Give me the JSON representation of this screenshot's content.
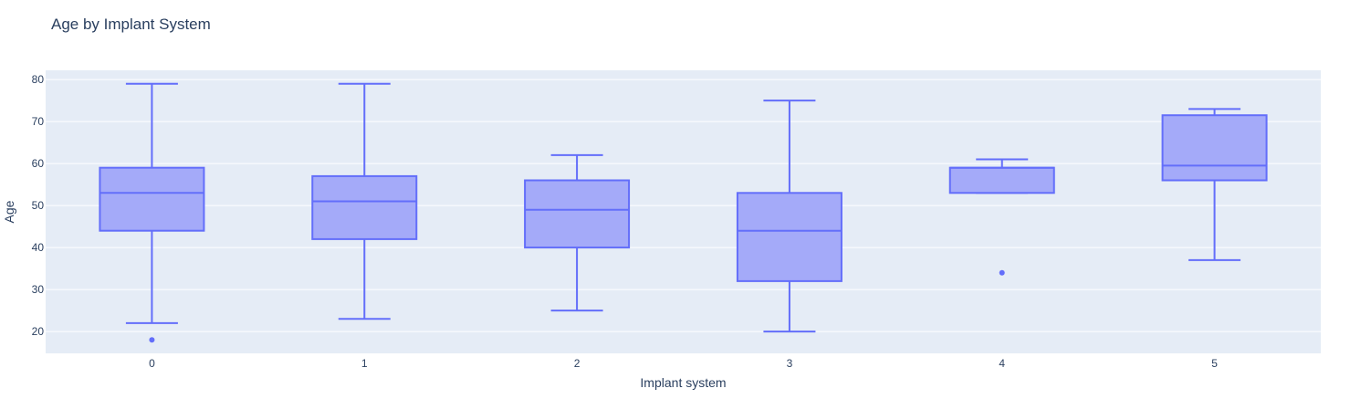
{
  "chart_data": {
    "type": "box",
    "title": "Age by Implant System",
    "xlabel": "Implant system",
    "ylabel": "Age",
    "categories": [
      "0",
      "1",
      "2",
      "3",
      "4",
      "5"
    ],
    "yticks": [
      20,
      30,
      40,
      50,
      60,
      70,
      80
    ],
    "ylim": [
      14.8,
      82.2
    ],
    "grid": true,
    "boxes": [
      {
        "category": "0",
        "lowerfence": 22,
        "q1": 44,
        "median": 53,
        "q3": 59,
        "upperfence": 79,
        "outliers": [
          18
        ]
      },
      {
        "category": "1",
        "lowerfence": 23,
        "q1": 42,
        "median": 51,
        "q3": 57,
        "upperfence": 79,
        "outliers": []
      },
      {
        "category": "2",
        "lowerfence": 25,
        "q1": 40,
        "median": 49,
        "q3": 56,
        "upperfence": 62,
        "outliers": []
      },
      {
        "category": "3",
        "lowerfence": 20,
        "q1": 32,
        "median": 44,
        "q3": 53,
        "upperfence": 75,
        "outliers": []
      },
      {
        "category": "4",
        "lowerfence": 53,
        "q1": 53,
        "median": 59,
        "q3": 59,
        "upperfence": 61,
        "outliers": [
          34
        ]
      },
      {
        "category": "5",
        "lowerfence": 37,
        "q1": 56,
        "median": 59.5,
        "q3": 71.5,
        "upperfence": 73,
        "outliers": []
      }
    ],
    "colors": {
      "plot_background": "#e5ecf6",
      "gridline": "#ffffff",
      "box_line": "#636efa",
      "box_fill": "#a4aaf9",
      "text": "#2a3f5f"
    }
  }
}
